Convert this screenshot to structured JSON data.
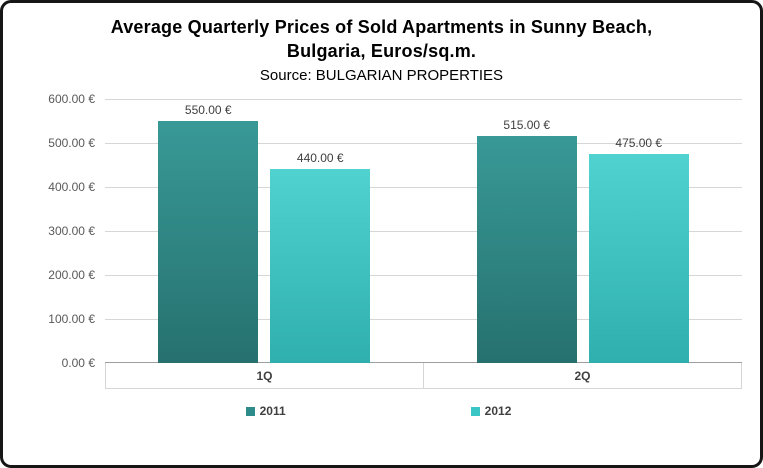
{
  "chart_data": {
    "type": "bar",
    "title_line1": "Average Quarterly Prices of Sold Apartments in Sunny Beach,",
    "title_line2": "Bulgaria, Euros/sq.m.",
    "subtitle": "Source: BULGARIAN PROPERTIES",
    "categories": [
      "1Q",
      "2Q"
    ],
    "series": [
      {
        "name": "2011",
        "color": "#2e8b8b",
        "color_top": "#389996",
        "color_bottom": "#26716f",
        "values": [
          550,
          515
        ],
        "labels": [
          "550.00 €",
          "515.00 €"
        ]
      },
      {
        "name": "2012",
        "color": "#3ac6c4",
        "color_top": "#4fd2d0",
        "color_bottom": "#2fb0ae",
        "values": [
          440,
          475
        ],
        "labels": [
          "440.00 €",
          "475.00 €"
        ]
      }
    ],
    "xlabel": "",
    "ylabel": "",
    "ylim": [
      0,
      600
    ],
    "ytick_step": 100,
    "ytick_labels": [
      "600.00 €",
      "500.00 €",
      "400.00 €",
      "300.00 €",
      "200.00 €",
      "100.00 €",
      "0.00 €"
    ],
    "grid": true,
    "legend_position": "bottom"
  }
}
